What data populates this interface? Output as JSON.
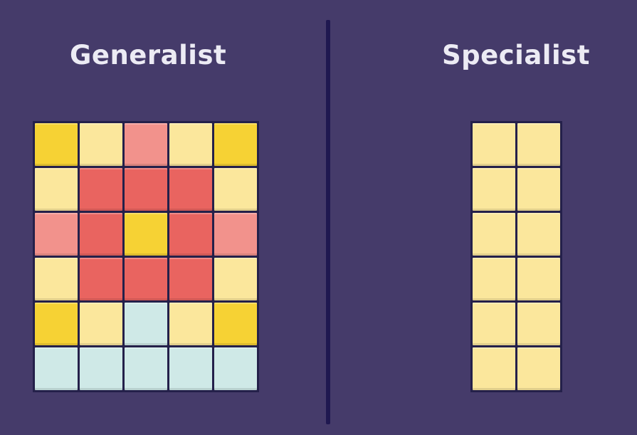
{
  "panels": {
    "left_title": "Generalist",
    "right_title": "Specialist"
  },
  "colors": {
    "background": "#453b6a",
    "divider": "#1f1850",
    "Y": "#f6d234",
    "L": "#fbe79c",
    "P": "#f2928c",
    "R": "#e96460",
    "T": "#cfe9e7"
  },
  "generalist_grid": [
    [
      "Y",
      "L",
      "P",
      "L",
      "Y"
    ],
    [
      "L",
      "R",
      "R",
      "R",
      "L"
    ],
    [
      "P",
      "R",
      "Y",
      "R",
      "P"
    ],
    [
      "L",
      "R",
      "R",
      "R",
      "L"
    ],
    [
      "Y",
      "L",
      "T",
      "L",
      "Y"
    ],
    [
      "T",
      "T",
      "T",
      "T",
      "T"
    ]
  ],
  "specialist_grid": [
    [
      "L",
      "L"
    ],
    [
      "L",
      "L"
    ],
    [
      "L",
      "L"
    ],
    [
      "L",
      "L"
    ],
    [
      "L",
      "L"
    ],
    [
      "L",
      "L"
    ]
  ]
}
